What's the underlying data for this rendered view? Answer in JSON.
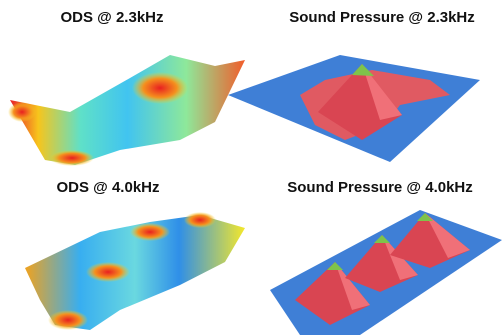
{
  "panels": [
    {
      "title": "ODS @ 2.3kHz"
    },
    {
      "title": "Sound Pressure @ 2.3kHz"
    },
    {
      "title": "ODS @ 4.0kHz"
    },
    {
      "title": "Sound Pressure @ 4.0kHz"
    }
  ]
}
